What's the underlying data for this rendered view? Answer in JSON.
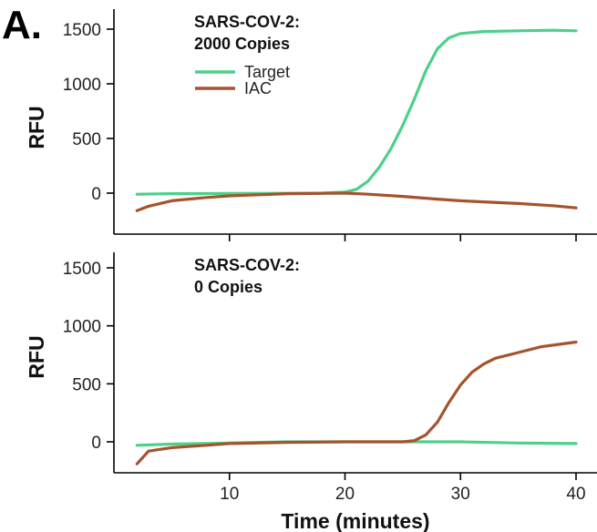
{
  "panel_label": "A.",
  "x_axis_title": "Time (minutes)",
  "colors": {
    "Target": "#4cd08a",
    "IAC": "#a5532d"
  },
  "chart_data": [
    {
      "type": "line",
      "title": "SARS-COV-2:\n2000 Copies",
      "xlabel": "",
      "ylabel": "RFU",
      "xlim": [
        0,
        41
      ],
      "ylim": [
        -180,
        1600
      ],
      "x_ticks": [
        10,
        20,
        30,
        40
      ],
      "y_ticks": [
        0,
        500,
        1000,
        1500
      ],
      "legend": {
        "position": "top-left",
        "entries": [
          "Target",
          "IAC"
        ]
      },
      "series": [
        {
          "name": "Target",
          "x": [
            2,
            5,
            10,
            15,
            18,
            20,
            21,
            22,
            23,
            24,
            25,
            26,
            27,
            28,
            29,
            30,
            32,
            35,
            38,
            40
          ],
          "y": [
            -10,
            -5,
            -3,
            -2,
            0,
            10,
            35,
            110,
            240,
            410,
            620,
            860,
            1120,
            1320,
            1420,
            1460,
            1478,
            1485,
            1490,
            1485
          ]
        },
        {
          "name": "IAC",
          "x": [
            2,
            3,
            5,
            8,
            10,
            15,
            20,
            22,
            25,
            28,
            30,
            32,
            35,
            38,
            40
          ],
          "y": [
            -160,
            -120,
            -70,
            -40,
            -25,
            -5,
            0,
            -10,
            -30,
            -55,
            -70,
            -80,
            -95,
            -115,
            -135
          ]
        }
      ]
    },
    {
      "type": "line",
      "title": "SARS-COV-2:\n0 Copies",
      "xlabel": "Time (minutes)",
      "ylabel": "RFU",
      "xlim": [
        0,
        41
      ],
      "ylim": [
        -290,
        1600
      ],
      "x_ticks": [
        10,
        20,
        30,
        40
      ],
      "y_ticks": [
        0,
        500,
        1000,
        1500
      ],
      "series": [
        {
          "name": "Target",
          "x": [
            2,
            5,
            10,
            15,
            20,
            25,
            30,
            35,
            40
          ],
          "y": [
            -30,
            -20,
            -10,
            0,
            0,
            0,
            0,
            -10,
            -15
          ]
        },
        {
          "name": "IAC",
          "x": [
            2,
            3,
            5,
            8,
            10,
            15,
            20,
            25,
            26,
            27,
            28,
            29,
            30,
            31,
            32,
            33,
            35,
            37,
            40
          ],
          "y": [
            -190,
            -80,
            -50,
            -30,
            -15,
            -5,
            0,
            0,
            10,
            60,
            170,
            340,
            490,
            600,
            670,
            720,
            770,
            820,
            860
          ]
        }
      ]
    }
  ]
}
